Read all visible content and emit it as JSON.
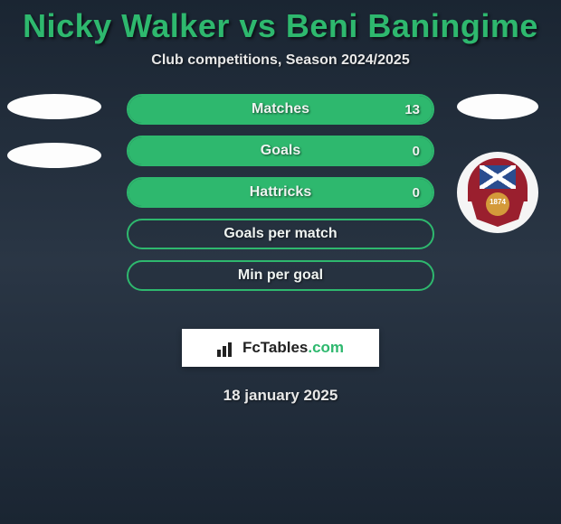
{
  "accent_color": "#2eb86e",
  "bg_gradient": [
    "#1a2532",
    "#2a3645",
    "#1a2532"
  ],
  "title": "Nicky Walker vs Beni Baningime",
  "subtitle": "Club competitions, Season 2024/2025",
  "stats": [
    {
      "label": "Matches",
      "value": "13",
      "fill_pct": 100
    },
    {
      "label": "Goals",
      "value": "0",
      "fill_pct": 100
    },
    {
      "label": "Hattricks",
      "value": "0",
      "fill_pct": 100
    },
    {
      "label": "Goals per match",
      "value": "",
      "fill_pct": 0
    },
    {
      "label": "Min per goal",
      "value": "",
      "fill_pct": 0
    }
  ],
  "crest": {
    "year": "1874",
    "primary": "#9a1f2e",
    "flag_bg": "#2a4d8f"
  },
  "site": {
    "brand_plain": "FcTables",
    "brand_suffix": ".com"
  },
  "date": "18 january 2025"
}
